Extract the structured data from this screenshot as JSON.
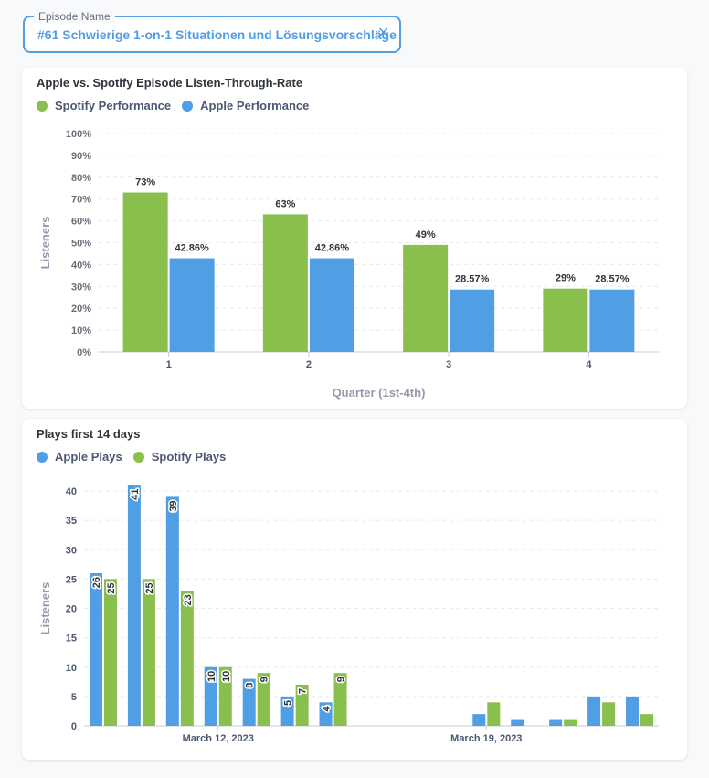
{
  "filter": {
    "legend": "Episode Name",
    "value": "#61 Schwierige 1-on-1 Situationen und Lösungsvorschläge",
    "close_glyph": "✕"
  },
  "colors": {
    "green": "#88bf4d",
    "blue": "#509ee3",
    "accent": "#509ee3"
  },
  "chart_data": [
    {
      "type": "bar",
      "title": "Apple vs. Spotify Episode Listen-Through-Rate",
      "xlabel": "Quarter (1st-4th)",
      "ylabel": "Listeners",
      "categories": [
        "1",
        "2",
        "3",
        "4"
      ],
      "series": [
        {
          "name": "Spotify Performance",
          "color": "#88bf4d",
          "values": [
            73,
            63,
            49,
            29
          ],
          "labels": [
            "73%",
            "63%",
            "49%",
            "29%"
          ]
        },
        {
          "name": "Apple Performance",
          "color": "#509ee3",
          "values": [
            42.86,
            42.86,
            28.57,
            28.57
          ],
          "labels": [
            "42.86%",
            "42.86%",
            "28.57%",
            "28.57%"
          ]
        }
      ],
      "ylim": [
        0,
        100
      ],
      "yticks": [
        "0%",
        "10%",
        "20%",
        "30%",
        "40%",
        "50%",
        "60%",
        "70%",
        "80%",
        "90%",
        "100%"
      ],
      "grid": true,
      "legend": "top-left"
    },
    {
      "type": "bar",
      "title": "Plays first 14 days",
      "xlabel": "",
      "ylabel": "Listeners",
      "x": [
        "2023-03-09",
        "2023-03-10",
        "2023-03-11",
        "2023-03-12",
        "2023-03-13",
        "2023-03-14",
        "2023-03-15",
        "2023-03-16",
        "2023-03-17",
        "2023-03-18",
        "2023-03-19",
        "2023-03-20",
        "2023-03-21",
        "2023-03-22",
        "2023-03-23"
      ],
      "series": [
        {
          "name": "Apple Plays",
          "color": "#509ee3",
          "values": [
            26,
            41,
            39,
            10,
            8,
            5,
            4,
            null,
            null,
            null,
            2,
            1,
            1,
            5,
            5
          ]
        },
        {
          "name": "Spotify Plays",
          "color": "#88bf4d",
          "values": [
            25,
            25,
            23,
            10,
            9,
            7,
            9,
            null,
            null,
            null,
            4,
            0,
            1,
            4,
            2
          ]
        }
      ],
      "bar_labels_visible_first_n": 7,
      "ylim": [
        0,
        40
      ],
      "yticks": [
        "0",
        "5",
        "10",
        "15",
        "20",
        "25",
        "30",
        "35",
        "40"
      ],
      "xticks": [
        "March 12, 2023",
        "March 19, 2023"
      ],
      "grid": true,
      "legend": "top-left"
    }
  ]
}
